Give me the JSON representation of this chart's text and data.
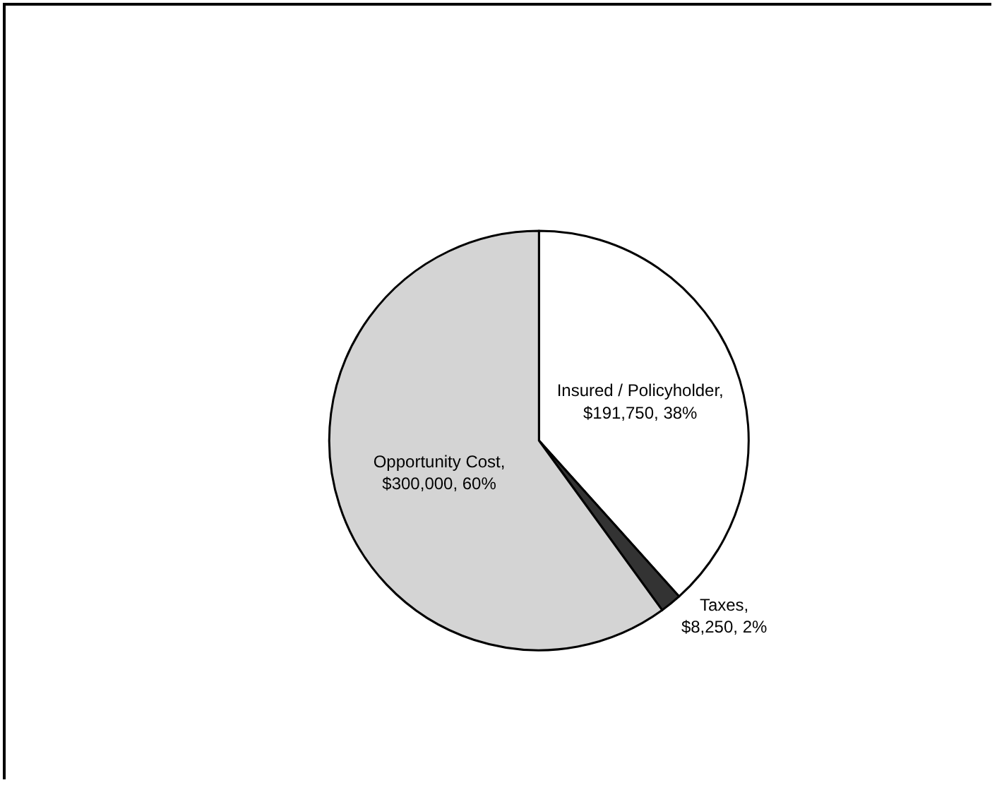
{
  "chart_data": {
    "type": "pie",
    "categories": [
      "Insured / Policyholder",
      "Taxes",
      "Opportunity Cost"
    ],
    "values": [
      191750,
      8250,
      300000
    ],
    "value_labels": [
      ", $191,750, 38%",
      ", $8,250, 2%",
      ", $300,000, 60%"
    ],
    "colors": [
      "#ffffff",
      "#333333",
      "#d4d4d4"
    ],
    "legend": false
  }
}
